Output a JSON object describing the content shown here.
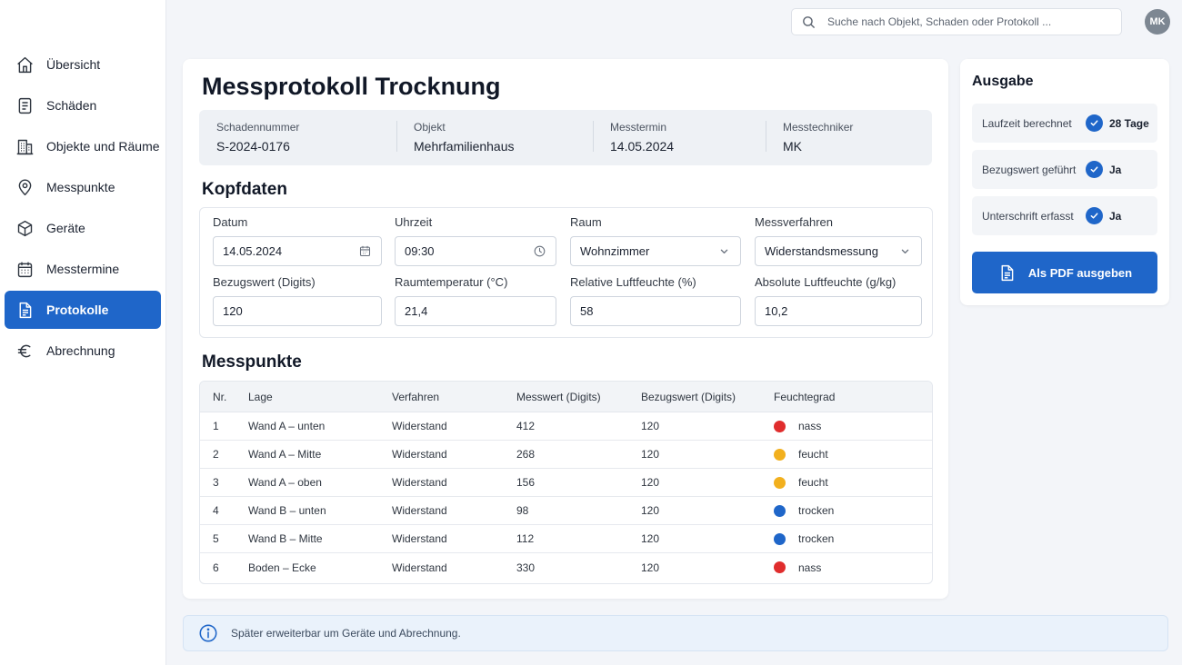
{
  "sidebar": {
    "items": [
      {
        "label": "Übersicht",
        "icon": "home-icon"
      },
      {
        "label": "Schäden",
        "icon": "document-icon"
      },
      {
        "label": "Objekte und Räume",
        "icon": "building-icon"
      },
      {
        "label": "Messpunkte",
        "icon": "map-pin-icon"
      },
      {
        "label": "Geräte",
        "icon": "box-icon"
      },
      {
        "label": "Messtermine",
        "icon": "calendar-icon"
      },
      {
        "label": "Protokolle",
        "icon": "file-text-icon",
        "active": true
      },
      {
        "label": "Abrechnung",
        "icon": "euro-icon"
      }
    ]
  },
  "header": {
    "search_placeholder": "Suche nach Objekt, Schaden oder Protokoll ...",
    "avatar_initials": "MK"
  },
  "main": {
    "title": "Messprotokoll Trocknung",
    "info": [
      {
        "label": "Schadennummer",
        "value": "S-2024-0176"
      },
      {
        "label": "Objekt",
        "value": "Mehrfamilienhaus"
      },
      {
        "label": "Messtermin",
        "value": "14.05.2024"
      },
      {
        "label": "Messtechniker",
        "value": "MK"
      }
    ],
    "kopfdaten_title": "Kopfdaten",
    "fields": {
      "datum": {
        "label": "Datum",
        "value": "14.05.2024"
      },
      "uhrzeit": {
        "label": "Uhrzeit",
        "value": "09:30"
      },
      "raum": {
        "label": "Raum",
        "value": "Wohnzimmer"
      },
      "messverfahren": {
        "label": "Messverfahren",
        "value": "Widerstandsmessung"
      },
      "bezugswert": {
        "label": "Bezugswert (Digits)",
        "value": "120"
      },
      "raumtemperatur": {
        "label": "Raumtemperatur (°C)",
        "value": "21,4"
      },
      "rel_feuchte": {
        "label": "Relative Luftfeuchte (%)",
        "value": "58"
      },
      "abs_feuchte": {
        "label": "Absolute Luftfeuchte (g/kg)",
        "value": "10,2"
      }
    },
    "messpunkte_title": "Messpunkte",
    "table": {
      "headers": [
        "Nr.",
        "Lage",
        "Verfahren",
        "Messwert (Digits)",
        "Bezugswert (Digits)",
        "Feuchtegrad"
      ],
      "rows": [
        {
          "nr": "1",
          "lage": "Wand A – unten",
          "verfahren": "Widerstand",
          "messwert": "412",
          "bezugswert": "120",
          "feuchtegrad": "nass",
          "color": "#e02d2d"
        },
        {
          "nr": "2",
          "lage": "Wand A – Mitte",
          "verfahren": "Widerstand",
          "messwert": "268",
          "bezugswert": "120",
          "feuchtegrad": "feucht",
          "color": "#f2b01e"
        },
        {
          "nr": "3",
          "lage": "Wand A – oben",
          "verfahren": "Widerstand",
          "messwert": "156",
          "bezugswert": "120",
          "feuchtegrad": "feucht",
          "color": "#f2b01e"
        },
        {
          "nr": "4",
          "lage": "Wand B – unten",
          "verfahren": "Widerstand",
          "messwert": "98",
          "bezugswert": "120",
          "feuchtegrad": "trocken",
          "color": "#1f66c9"
        },
        {
          "nr": "5",
          "lage": "Wand B – Mitte",
          "verfahren": "Widerstand",
          "messwert": "112",
          "bezugswert": "120",
          "feuchtegrad": "trocken",
          "color": "#1f66c9"
        },
        {
          "nr": "6",
          "lage": "Boden – Ecke",
          "verfahren": "Widerstand",
          "messwert": "330",
          "bezugswert": "120",
          "feuchtegrad": "nass",
          "color": "#e02d2d"
        }
      ]
    }
  },
  "ausgabe": {
    "title": "Ausgabe",
    "checks": [
      {
        "label": "Laufzeit berechnet",
        "value": "28 Tage"
      },
      {
        "label": "Bezugswert geführt",
        "value": "Ja"
      },
      {
        "label": "Unterschrift erfasst",
        "value": "Ja"
      }
    ],
    "pdf_button": "Als PDF ausgeben"
  },
  "banner": {
    "text": "Später erweiterbar um Geräte und Abrechnung."
  },
  "colors": {
    "accent": "#1f66c9",
    "nass": "#e02d2d",
    "feucht": "#f2b01e",
    "trocken": "#1f66c9"
  }
}
